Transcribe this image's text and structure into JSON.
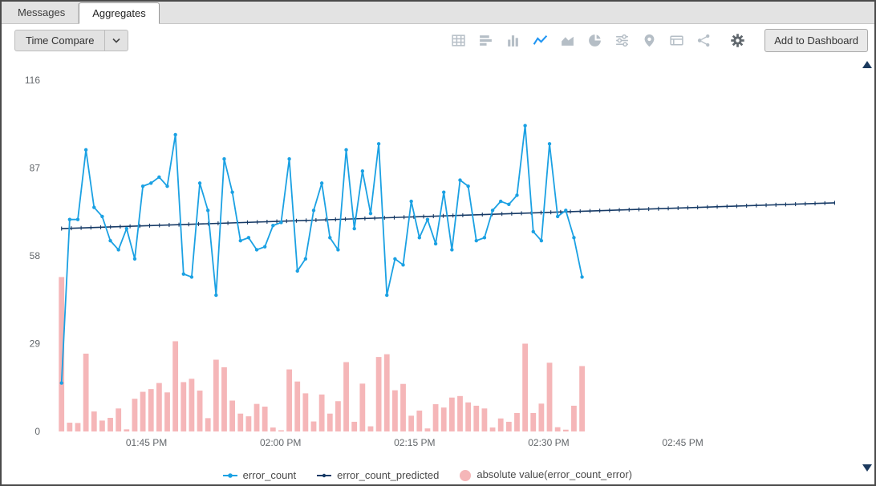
{
  "tabs": [
    {
      "label": "Messages",
      "active": false
    },
    {
      "label": "Aggregates",
      "active": true
    }
  ],
  "toolbar": {
    "time_compare_label": "Time Compare",
    "add_to_dashboard_label": "Add to Dashboard",
    "chart_type_icons": [
      {
        "name": "table-icon",
        "active": false
      },
      {
        "name": "bar-chart-horizontal-icon",
        "active": false
      },
      {
        "name": "bar-chart-vertical-icon",
        "active": false
      },
      {
        "name": "line-chart-icon",
        "active": true
      },
      {
        "name": "area-chart-icon",
        "active": false
      },
      {
        "name": "pie-chart-icon",
        "active": false
      },
      {
        "name": "sliders-icon",
        "active": false
      },
      {
        "name": "map-pin-icon",
        "active": false
      },
      {
        "name": "events-table-icon",
        "active": false
      },
      {
        "name": "link-graph-icon",
        "active": false
      }
    ]
  },
  "colors": {
    "error_count": "#1ba1e3",
    "error_count_predicted": "#163a66",
    "error_bars": "#f5b6b8",
    "active_icon": "#2196f3",
    "icon_gray": "#b5bec6",
    "axis_text": "#63676b",
    "scroll_arrow": "#1c3a5e"
  },
  "chart_data": {
    "type": "line+bar",
    "title": "",
    "xlabel": "",
    "ylabel": "",
    "grid": false,
    "legend_position": "bottom",
    "ylim": [
      0,
      116
    ],
    "yticks": [
      116,
      87,
      58,
      29,
      0
    ],
    "xlim_minutes": [
      0,
      88.5
    ],
    "xticks": [
      {
        "label": "01:45 PM",
        "minute": 11
      },
      {
        "label": "02:00 PM",
        "minute": 26
      },
      {
        "label": "02:15 PM",
        "minute": 41
      },
      {
        "label": "02:30 PM",
        "minute": 56
      },
      {
        "label": "02:45 PM",
        "minute": 71
      }
    ],
    "series": [
      {
        "name": "error_count",
        "type": "line",
        "color": "#1ba1e3",
        "x_start": 1.5,
        "x_step": 0.91,
        "values": [
          16,
          70,
          70,
          93,
          74,
          71,
          63,
          60,
          67,
          57,
          81,
          82,
          84,
          81,
          98,
          52,
          51,
          82,
          73,
          45,
          90,
          79,
          63,
          64,
          60,
          61,
          68,
          69,
          90,
          53,
          57,
          73,
          82,
          64,
          60,
          93,
          67,
          86,
          72,
          95,
          45,
          57,
          55,
          76,
          64,
          70,
          62,
          79,
          60,
          83,
          81,
          63,
          64,
          73,
          76,
          75,
          78,
          101,
          66,
          63,
          95,
          71,
          73,
          64,
          51
        ]
      },
      {
        "name": "error_count_predicted",
        "type": "trend",
        "color": "#163a66",
        "x_start": 1.5,
        "x_end": 88,
        "y_start": 67,
        "y_end": 75.5,
        "marker_count": 80
      },
      {
        "name": "absolute value(error_count_error)",
        "type": "bar",
        "color": "#f5b6b8",
        "x_start": 1.5,
        "x_step": 0.91,
        "values": [
          51,
          2.9,
          2.8,
          25.7,
          6.6,
          3.6,
          4.5,
          7.6,
          0.7,
          10.8,
          13.1,
          14,
          16,
          12.9,
          29.8,
          16.3,
          17.4,
          13.5,
          4.4,
          23.7,
          21.2,
          10.2,
          5.9,
          5,
          9.1,
          8.2,
          1.3,
          0.4,
          20.5,
          16.5,
          12.6,
          3.3,
          12.2,
          5.9,
          10,
          22.9,
          3.2,
          15.8,
          1.7,
          24.6,
          25.5,
          13.6,
          15.7,
          5.2,
          6.9,
          1,
          9,
          7.9,
          11.2,
          11.7,
          9.6,
          8.5,
          7.6,
          1.3,
          4.3,
          3.2,
          6.1,
          29,
          6.1,
          9.2,
          22.7,
          1.4,
          0.6,
          8.5,
          21.6
        ]
      }
    ]
  },
  "legend": {
    "items": [
      {
        "label": "error_count",
        "marker": "line",
        "color": "#1ba1e3"
      },
      {
        "label": "error_count_predicted",
        "marker": "line",
        "color": "#163a66"
      },
      {
        "label": "absolute value(error_count_error)",
        "marker": "circle",
        "color": "#f5b6b8"
      }
    ]
  }
}
